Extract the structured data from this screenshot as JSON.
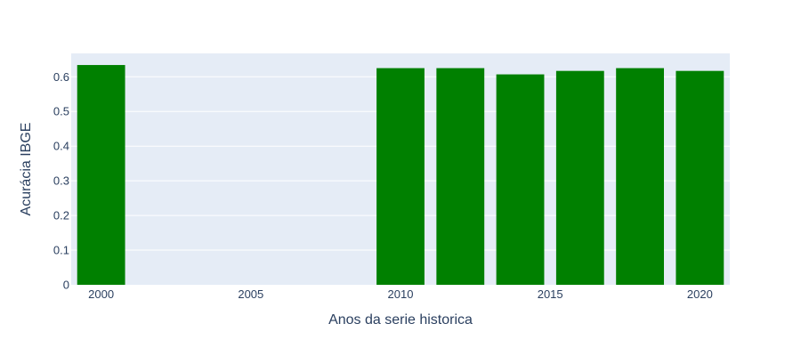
{
  "chart_data": {
    "type": "bar",
    "title": "",
    "xlabel": "Anos da serie historica",
    "ylabel": "Acurácia IBGE",
    "x": [
      2000,
      2010,
      2012,
      2014,
      2016,
      2018,
      2020
    ],
    "values": [
      0.634,
      0.625,
      0.625,
      0.607,
      0.617,
      0.625,
      0.617
    ],
    "xlim": [
      1999,
      2021
    ],
    "ylim": [
      0,
      0.6675
    ],
    "x_ticks": [
      "2000",
      "2005",
      "2010",
      "2015",
      "2020"
    ],
    "y_ticks": [
      "0",
      "0.1",
      "0.2",
      "0.3",
      "0.4",
      "0.5",
      "0.6"
    ],
    "grid": true,
    "colors": {
      "bar": "#008000",
      "plot_background": "#e5ecf6",
      "gridline": "#ffffff",
      "text": "#2a3f5f"
    }
  }
}
